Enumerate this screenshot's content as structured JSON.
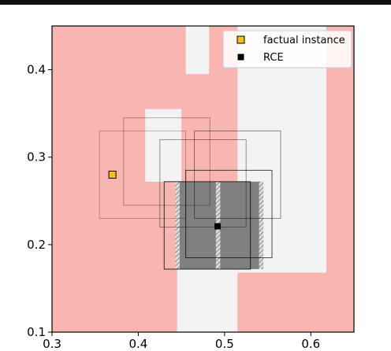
{
  "chart_data": {
    "type": "scatter",
    "title": "",
    "xlabel": "",
    "ylabel": "",
    "xlim": [
      0.3,
      0.65
    ],
    "ylim": [
      0.1,
      0.45
    ],
    "xticks": [
      0.3,
      0.4,
      0.5,
      0.6
    ],
    "yticks": [
      0.1,
      0.2,
      0.3,
      0.4
    ],
    "xtick_labels": [
      "0.3",
      "0.4",
      "0.5",
      "0.6"
    ],
    "ytick_labels": [
      "0.1",
      "0.2",
      "0.3",
      "0.4"
    ],
    "grid": false,
    "legend_position": "top-right",
    "colors": {
      "background_region": "#f9b6b0",
      "light_region": "#f3f3f3",
      "rce_box_fill": "#808080",
      "factual_marker": "#f4c020",
      "rce_marker": "#000000"
    },
    "light_regions": [
      {
        "x0": 0.455,
        "x1": 0.482,
        "y0": 0.395,
        "y1": 0.45
      },
      {
        "x0": 0.515,
        "x1": 0.618,
        "y0": 0.168,
        "y1": 0.45
      },
      {
        "x0": 0.408,
        "x1": 0.45,
        "y0": 0.272,
        "y1": 0.355
      },
      {
        "x0": 0.445,
        "x1": 0.515,
        "y0": 0.1,
        "y1": 0.272
      }
    ],
    "boxes": [
      {
        "x0": 0.355,
        "x1": 0.455,
        "y0": 0.23,
        "y1": 0.33,
        "opacity": 0.25
      },
      {
        "x0": 0.383,
        "x1": 0.483,
        "y0": 0.245,
        "y1": 0.345,
        "opacity": 0.3
      },
      {
        "x0": 0.425,
        "x1": 0.525,
        "y0": 0.22,
        "y1": 0.32,
        "opacity": 0.4
      },
      {
        "x0": 0.465,
        "x1": 0.565,
        "y0": 0.23,
        "y1": 0.33,
        "opacity": 0.45
      },
      {
        "x0": 0.455,
        "x1": 0.555,
        "y0": 0.185,
        "y1": 0.285,
        "opacity": 0.7
      },
      {
        "x0": 0.43,
        "x1": 0.53,
        "y0": 0.172,
        "y1": 0.272,
        "opacity": 0.8
      }
    ],
    "rce_box": {
      "x0": 0.443,
      "x1": 0.545,
      "y0": 0.172,
      "y1": 0.272
    },
    "hatched_strips": [
      {
        "x0": 0.443,
        "x1": 0.448
      },
      {
        "x0": 0.49,
        "x1": 0.495
      },
      {
        "x0": 0.54,
        "x1": 0.545
      }
    ],
    "series": [
      {
        "name": "factual instance",
        "marker": "square",
        "color": "#f4c020",
        "points": [
          [
            0.37,
            0.28
          ]
        ]
      },
      {
        "name": "RCE",
        "marker": "square",
        "color": "#000000",
        "points": [
          [
            0.492,
            0.221
          ]
        ]
      }
    ]
  }
}
